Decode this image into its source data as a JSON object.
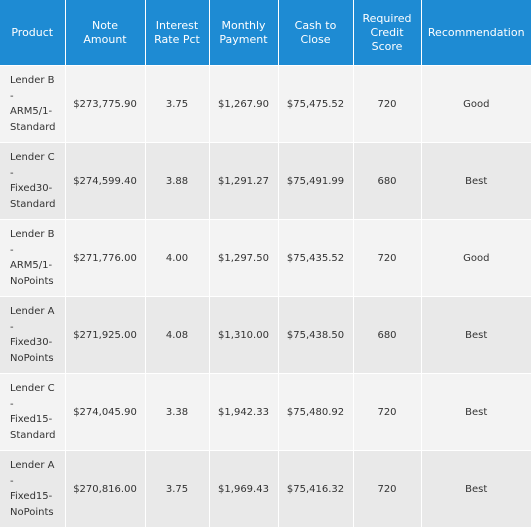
{
  "columns": [
    "Product",
    "Note\nAmount",
    "Interest\nRate Pct",
    "Monthly\nPayment",
    "Cash to\nClose",
    "Required\nCredit\nScore",
    "Recommendation"
  ],
  "rows": [
    {
      "product": "Lender B\n-\nARM5/1-\nStandard",
      "note_amount": "$273,775.90",
      "rate": "3.75",
      "payment": "$1,267.90",
      "cash": "$75,475.52",
      "score": "720",
      "recommendation": "Good"
    },
    {
      "product": "Lender C\n-\nFixed30-\nStandard",
      "note_amount": "$274,599.40",
      "rate": "3.88",
      "payment": "$1,291.27",
      "cash": "$75,491.99",
      "score": "680",
      "recommendation": "Best"
    },
    {
      "product": "Lender B\n-\nARM5/1-\nNoPoints",
      "note_amount": "$271,776.00",
      "rate": "4.00",
      "payment": "$1,297.50",
      "cash": "$75,435.52",
      "score": "720",
      "recommendation": "Good"
    },
    {
      "product": "Lender A\n-\nFixed30-\nNoPoints",
      "note_amount": "$271,925.00",
      "rate": "4.08",
      "payment": "$1,310.00",
      "cash": "$75,438.50",
      "score": "680",
      "recommendation": "Best"
    },
    {
      "product": "Lender C\n-\nFixed15-\nStandard",
      "note_amount": "$274,045.90",
      "rate": "3.38",
      "payment": "$1,942.33",
      "cash": "$75,480.92",
      "score": "720",
      "recommendation": "Best"
    },
    {
      "product": "Lender A\n-\nFixed15-\nNoPoints",
      "note_amount": "$270,816.00",
      "rate": "3.75",
      "payment": "$1,969.43",
      "cash": "$75,416.32",
      "score": "720",
      "recommendation": "Best"
    }
  ]
}
